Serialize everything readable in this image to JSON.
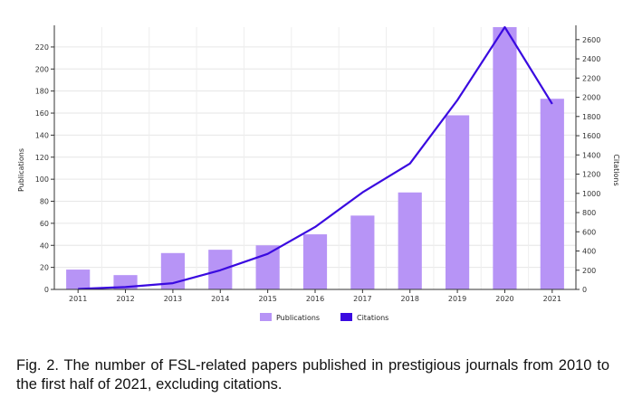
{
  "chart_data": {
    "type": "bar+line",
    "categories": [
      "2011",
      "2012",
      "2013",
      "2014",
      "2015",
      "2016",
      "2017",
      "2018",
      "2019",
      "2020",
      "2021"
    ],
    "series": [
      {
        "name": "Publications",
        "type": "bar",
        "axis": "left",
        "values": [
          18,
          13,
          33,
          36,
          40,
          50,
          67,
          88,
          158,
          238,
          173
        ],
        "color": "#b794f6"
      },
      {
        "name": "Citations",
        "type": "line",
        "axis": "right",
        "values": [
          5,
          25,
          65,
          200,
          370,
          650,
          1010,
          1310,
          1970,
          2730,
          1930
        ],
        "color": "#3a0ae0"
      }
    ],
    "ylabel_left": "Publications",
    "ylabel_right": "Citations",
    "ylim_left": [
      0,
      238
    ],
    "ylim_right": [
      0,
      2730
    ],
    "yticks_left": [
      0,
      20,
      40,
      60,
      80,
      100,
      120,
      140,
      160,
      180,
      200,
      220
    ],
    "yticks_right": [
      0,
      200,
      400,
      600,
      800,
      1000,
      1200,
      1400,
      1600,
      1800,
      2000,
      2200,
      2400,
      2600
    ],
    "legend": "bottom-center"
  },
  "caption": "Fig. 2. The number of FSL-related papers published in prestigious journals from 2010 to the first half of 2021, excluding citations."
}
